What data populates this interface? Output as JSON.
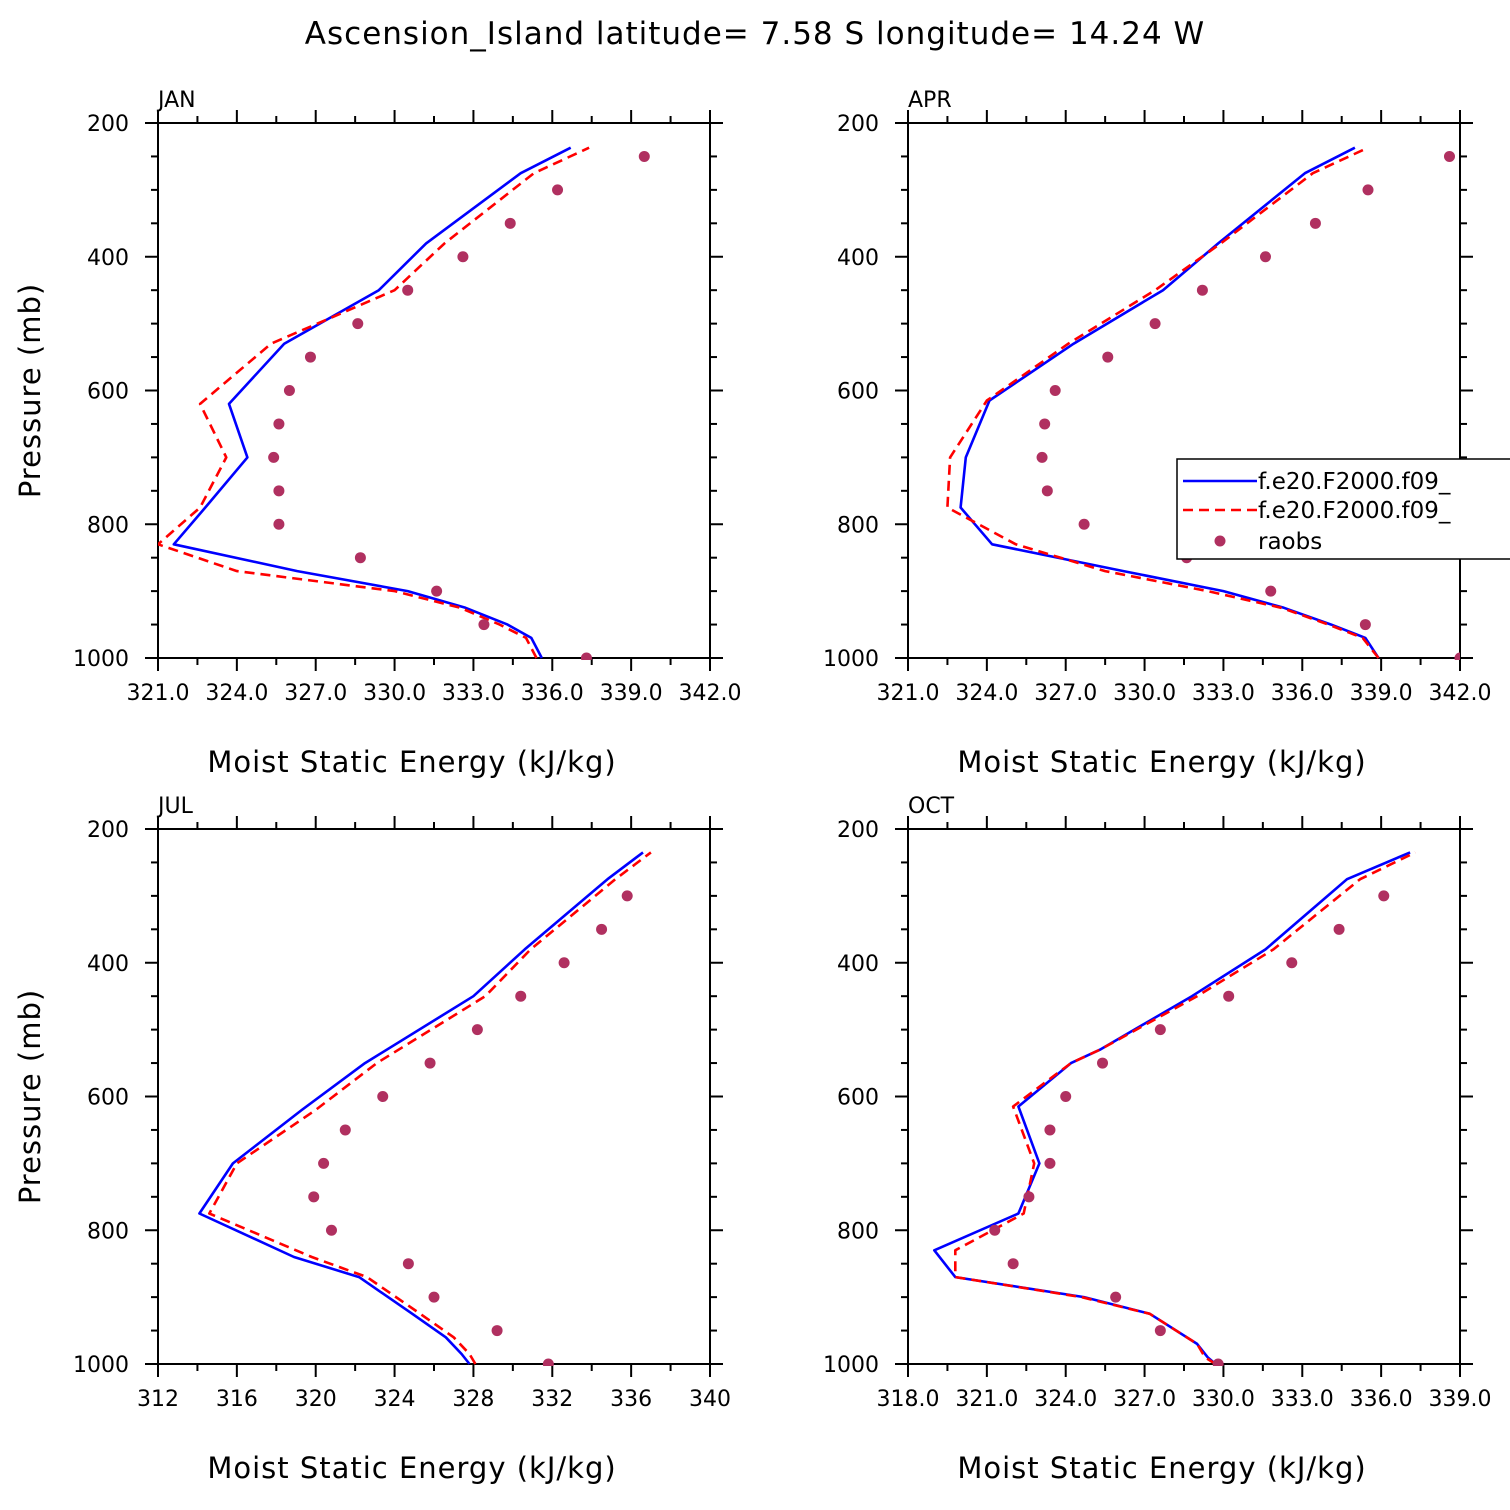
{
  "figure": {
    "title": "Ascension_Island  latitude= 7.58 S longitude= 14.24 W"
  },
  "legend": {
    "entries": [
      {
        "label": "f.e20.F2000.f09_",
        "style": "solid",
        "color": "#0000ff"
      },
      {
        "label": "f.e20.F2000.f09_",
        "style": "dashed",
        "color": "#ff0000"
      },
      {
        "label": "raobs",
        "style": "marker",
        "color": "#b03060"
      }
    ]
  },
  "colors": {
    "model1": "#0000ff",
    "model2": "#ff0000",
    "obs": "#b03060"
  },
  "chart_data": [
    {
      "type": "line",
      "title": "JAN",
      "xlabel": "Moist Static Energy (kJ/kg)",
      "ylabel": "Pressure (mb)",
      "xlim": [
        321,
        342
      ],
      "ylim": [
        1000,
        200
      ],
      "xticks": [
        "321.0",
        "324.0",
        "327.0",
        "330.0",
        "333.0",
        "336.0",
        "339.0",
        "342.0"
      ],
      "yticks": [
        "200",
        "400",
        "600",
        "800",
        "1000"
      ],
      "series": [
        {
          "key": "model1",
          "pressure": [
            1000,
            970,
            950,
            925,
            900,
            870,
            830,
            775,
            700,
            620,
            530,
            450,
            380,
            275,
            237
          ],
          "values": [
            335.6,
            335.2,
            334.3,
            332.7,
            330.5,
            326.3,
            321.6,
            322.8,
            324.4,
            323.7,
            325.8,
            329.4,
            331.2,
            334.8,
            336.7
          ]
        },
        {
          "key": "model2",
          "pressure": [
            1000,
            970,
            950,
            925,
            900,
            870,
            830,
            775,
            700,
            620,
            530,
            450,
            380,
            275,
            237
          ],
          "values": [
            335.4,
            335.0,
            334.0,
            332.5,
            330.0,
            324.0,
            321.0,
            322.6,
            323.6,
            322.6,
            325.3,
            330.0,
            331.9,
            335.3,
            337.4
          ]
        },
        {
          "key": "obs",
          "pressure": [
            250,
            300,
            350,
            400,
            450,
            500,
            550,
            600,
            650,
            700,
            750,
            800,
            850,
            900,
            950,
            1000
          ],
          "values": [
            339.5,
            336.2,
            334.4,
            332.6,
            330.5,
            328.6,
            326.8,
            326.0,
            325.6,
            325.4,
            325.6,
            325.6,
            328.7,
            331.6,
            333.4,
            337.3
          ]
        }
      ]
    },
    {
      "type": "line",
      "title": "APR",
      "xlabel": "Moist Static Energy (kJ/kg)",
      "ylabel": "",
      "xlim": [
        321,
        342
      ],
      "ylim": [
        1000,
        200
      ],
      "xticks": [
        "321.0",
        "324.0",
        "327.0",
        "330.0",
        "333.0",
        "336.0",
        "339.0",
        "342.0"
      ],
      "yticks": [
        "200",
        "400",
        "600",
        "800",
        "1000"
      ],
      "series": [
        {
          "key": "model1",
          "pressure": [
            1000,
            970,
            950,
            925,
            900,
            870,
            830,
            775,
            700,
            615,
            530,
            450,
            380,
            275,
            237
          ],
          "values": [
            338.9,
            338.4,
            337.1,
            335.3,
            333.0,
            329.2,
            324.2,
            323.0,
            323.2,
            324.1,
            327.3,
            330.7,
            332.8,
            336.1,
            338.0
          ],
          "legend_index": 0
        },
        {
          "key": "model2",
          "pressure": [
            1000,
            970,
            950,
            925,
            900,
            870,
            830,
            775,
            700,
            615,
            530,
            450,
            380,
            275,
            237
          ],
          "values": [
            338.9,
            338.3,
            337.0,
            335.2,
            332.4,
            328.5,
            325.1,
            322.5,
            322.6,
            324.0,
            327.1,
            330.4,
            332.9,
            336.4,
            338.5
          ]
        },
        {
          "key": "obs",
          "pressure": [
            250,
            300,
            350,
            400,
            450,
            500,
            550,
            600,
            650,
            700,
            750,
            800,
            850,
            900,
            950,
            1000
          ],
          "values": [
            341.6,
            338.5,
            336.5,
            334.6,
            332.2,
            330.4,
            328.6,
            326.6,
            326.2,
            326.1,
            326.3,
            327.7,
            331.6,
            334.8,
            338.4,
            342.0
          ]
        }
      ]
    },
    {
      "type": "line",
      "title": "JUL",
      "xlabel": "Moist Static Energy (kJ/kg)",
      "ylabel": "Pressure (mb)",
      "xlim": [
        312,
        340
      ],
      "ylim": [
        1000,
        200
      ],
      "xticks": [
        "312",
        "316",
        "320",
        "324",
        "328",
        "332",
        "336",
        "340"
      ],
      "yticks": [
        "200",
        "400",
        "600",
        "800",
        "1000"
      ],
      "series": [
        {
          "key": "model1",
          "pressure": [
            1000,
            985,
            960,
            925,
            870,
            840,
            775,
            700,
            620,
            550,
            450,
            380,
            275,
            235
          ],
          "values": [
            327.8,
            327.4,
            326.6,
            324.9,
            322.2,
            318.9,
            314.1,
            315.8,
            319.3,
            322.5,
            328.0,
            330.6,
            334.8,
            336.6
          ]
        },
        {
          "key": "model2",
          "pressure": [
            1000,
            985,
            960,
            925,
            870,
            840,
            775,
            700,
            620,
            550,
            450,
            380,
            275,
            235
          ],
          "values": [
            328.1,
            327.8,
            327.0,
            325.3,
            322.6,
            319.8,
            314.6,
            316.0,
            320.0,
            323.1,
            328.6,
            330.9,
            335.2,
            337.0
          ]
        },
        {
          "key": "obs",
          "pressure": [
            300,
            350,
            400,
            450,
            500,
            550,
            600,
            650,
            700,
            750,
            800,
            850,
            900,
            950,
            1000
          ],
          "values": [
            335.8,
            334.5,
            332.6,
            330.4,
            328.2,
            325.8,
            323.4,
            321.5,
            320.4,
            319.9,
            320.8,
            324.7,
            326.0,
            329.2,
            331.8
          ]
        }
      ]
    },
    {
      "type": "line",
      "title": "OCT",
      "xlabel": "Moist Static Energy (kJ/kg)",
      "ylabel": "",
      "xlim": [
        318,
        339
      ],
      "ylim": [
        1000,
        200
      ],
      "xticks": [
        "318.0",
        "321.0",
        "324.0",
        "327.0",
        "330.0",
        "333.0",
        "336.0",
        "339.0"
      ],
      "yticks": [
        "200",
        "400",
        "600",
        "800",
        "1000"
      ],
      "series": [
        {
          "key": "model1",
          "pressure": [
            1000,
            990,
            970,
            925,
            900,
            870,
            830,
            775,
            700,
            615,
            550,
            530,
            450,
            380,
            275,
            235
          ],
          "values": [
            329.7,
            329.4,
            329.0,
            327.2,
            324.7,
            319.8,
            319.0,
            322.2,
            323.0,
            322.2,
            324.2,
            325.3,
            328.8,
            331.6,
            334.7,
            337.1
          ]
        },
        {
          "key": "model2",
          "pressure": [
            1000,
            990,
            970,
            925,
            900,
            870,
            830,
            775,
            700,
            615,
            550,
            530,
            450,
            380,
            275,
            235
          ],
          "values": [
            329.7,
            329.3,
            329.0,
            327.2,
            324.6,
            319.8,
            319.8,
            322.4,
            322.8,
            322.0,
            324.2,
            325.3,
            329.0,
            331.9,
            335.2,
            337.3
          ]
        },
        {
          "key": "obs",
          "pressure": [
            300,
            350,
            400,
            450,
            500,
            550,
            600,
            650,
            700,
            750,
            800,
            850,
            900,
            950,
            1000
          ],
          "values": [
            336.1,
            334.4,
            332.6,
            330.2,
            327.6,
            325.4,
            324.0,
            323.4,
            323.4,
            322.6,
            321.3,
            322.0,
            325.9,
            327.6,
            329.8
          ]
        }
      ]
    }
  ]
}
